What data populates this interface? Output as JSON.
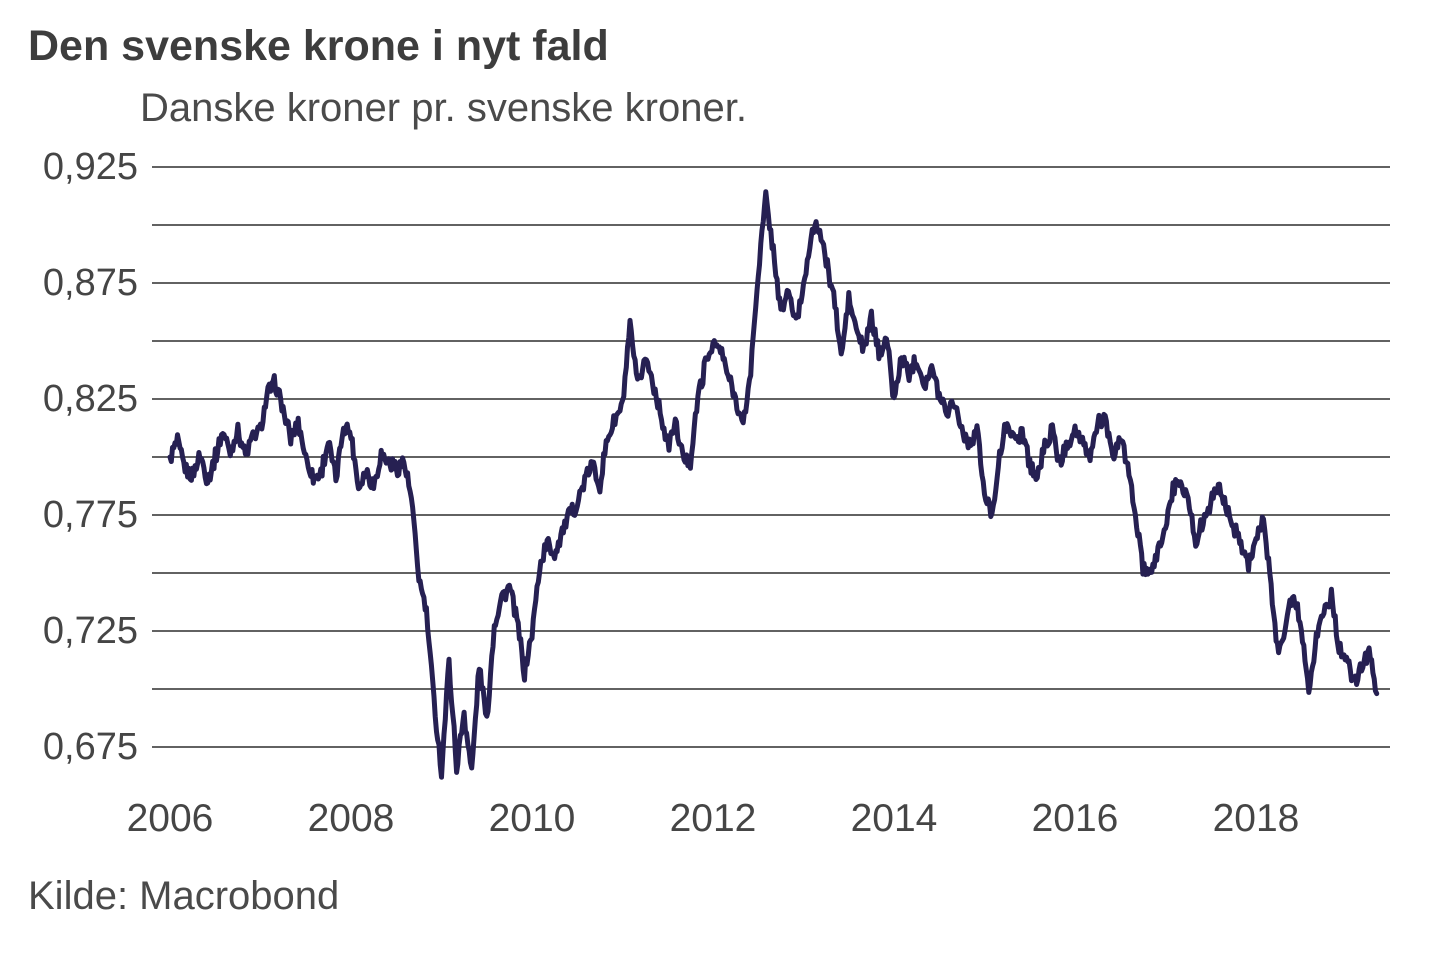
{
  "header": {
    "title": "Den svenske krone i nyt fald",
    "subtitle": "Danske kroner pr. svenske kroner."
  },
  "footer": {
    "source": "Kilde: Macrobond"
  },
  "colors": {
    "line": "#262052",
    "grid": "#2e2e2e",
    "title_text": "#3d3d3d",
    "text": "#4a4a4a"
  },
  "chart_data": {
    "type": "line",
    "title": "Den svenske krone i nyt fald",
    "subtitle": "Danske kroner pr. svenske kroner.",
    "source": "Kilde: Macrobond",
    "series_name": "Danske kroner pr. svenske kroner (DKK pr. SEK)",
    "x_unit": "decimal years, monthly observations of a daily series",
    "x_range": [
      2006.0,
      2019.42
    ],
    "ylim": [
      0.652,
      0.938
    ],
    "grid": "horizontal only, every 0.025",
    "legend_position": "none",
    "grid_values": [
      0.925,
      0.9,
      0.875,
      0.85,
      0.825,
      0.8,
      0.775,
      0.75,
      0.725,
      0.7,
      0.675
    ],
    "y_tick_labels": [
      {
        "value": 0.925,
        "label": "0,925"
      },
      {
        "value": 0.875,
        "label": "0,875"
      },
      {
        "value": 0.825,
        "label": "0,825"
      },
      {
        "value": 0.775,
        "label": "0,775"
      },
      {
        "value": 0.725,
        "label": "0,725"
      },
      {
        "value": 0.675,
        "label": "0,675"
      }
    ],
    "x_tick_years": [
      {
        "year": 2006,
        "label": "2006"
      },
      {
        "year": 2008,
        "label": "2008"
      },
      {
        "year": 2010,
        "label": "2010"
      },
      {
        "year": 2012,
        "label": "2012"
      },
      {
        "year": 2014,
        "label": "2014"
      },
      {
        "year": 2016,
        "label": "2016"
      },
      {
        "year": 2018,
        "label": "2018"
      }
    ],
    "monthly_values": {
      "2006": [
        0.8,
        0.806,
        0.795,
        0.792,
        0.801,
        0.79,
        0.8,
        0.811,
        0.802,
        0.812,
        0.801,
        0.809
      ],
      "2007": [
        0.812,
        0.828,
        0.832,
        0.82,
        0.808,
        0.815,
        0.8,
        0.791,
        0.793,
        0.807,
        0.79,
        0.814
      ],
      "2008": [
        0.81,
        0.787,
        0.794,
        0.788,
        0.801,
        0.798,
        0.795,
        0.798,
        0.782,
        0.748,
        0.733,
        0.695
      ],
      "2009": [
        0.664,
        0.712,
        0.666,
        0.69,
        0.664,
        0.71,
        0.686,
        0.728,
        0.74,
        0.744,
        0.73,
        0.707
      ],
      "2010": [
        0.724,
        0.752,
        0.763,
        0.758,
        0.768,
        0.775,
        0.78,
        0.79,
        0.797,
        0.788,
        0.808,
        0.816
      ],
      "2011": [
        0.822,
        0.856,
        0.83,
        0.843,
        0.833,
        0.82,
        0.804,
        0.815,
        0.8,
        0.798,
        0.826,
        0.84
      ],
      "2012": [
        0.849,
        0.846,
        0.835,
        0.825,
        0.813,
        0.837,
        0.88,
        0.912,
        0.889,
        0.862,
        0.872,
        0.857
      ],
      "2013": [
        0.874,
        0.896,
        0.9,
        0.884,
        0.87,
        0.843,
        0.868,
        0.855,
        0.846,
        0.86,
        0.845,
        0.852
      ],
      "2014": [
        0.824,
        0.843,
        0.836,
        0.843,
        0.831,
        0.838,
        0.827,
        0.82,
        0.824,
        0.812,
        0.805,
        0.813
      ],
      "2015": [
        0.783,
        0.776,
        0.8,
        0.816,
        0.806,
        0.812,
        0.797,
        0.791,
        0.805,
        0.811,
        0.797,
        0.806
      ],
      "2016": [
        0.812,
        0.805,
        0.8,
        0.815,
        0.817,
        0.798,
        0.81,
        0.795,
        0.776,
        0.752,
        0.748,
        0.76
      ],
      "2017": [
        0.77,
        0.786,
        0.79,
        0.782,
        0.763,
        0.773,
        0.78,
        0.788,
        0.779,
        0.77,
        0.764,
        0.754
      ],
      "2018": [
        0.765,
        0.772,
        0.744,
        0.714,
        0.73,
        0.741,
        0.727,
        0.7,
        0.722,
        0.734,
        0.74,
        0.718
      ],
      "2019": [
        0.712,
        0.702,
        0.71,
        0.717,
        0.698
      ]
    }
  }
}
